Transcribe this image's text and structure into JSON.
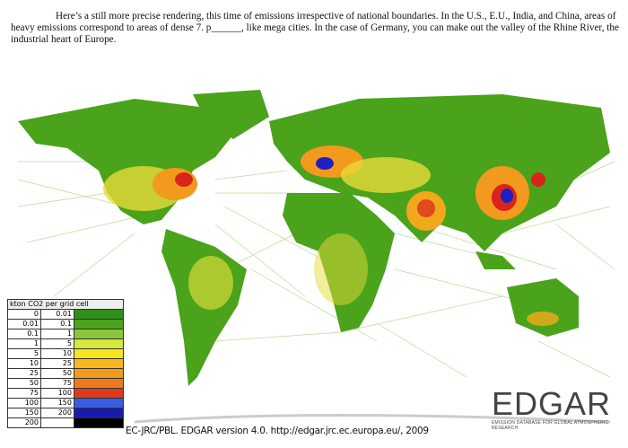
{
  "paragraph": "Here’s a still more precise rendering, this time of emissions irrespective of national boundaries. In the U.S., E.U., India, and China, areas of heavy emissions correspond to areas of dense 7. p______, like mega cities. In the case of Germany, you can make out the valley of the Rhine River, the industrial heart of Europe.",
  "legend": {
    "title": "kton CO2 per grid cell",
    "rows": [
      {
        "from": "0",
        "to": "0.01",
        "color": "#2f8f1a"
      },
      {
        "from": "0.01",
        "to": "0.1",
        "color": "#4aa31a"
      },
      {
        "from": "0.1",
        "to": "1",
        "color": "#8cc63f"
      },
      {
        "from": "1",
        "to": "5",
        "color": "#d6e83a"
      },
      {
        "from": "5",
        "to": "10",
        "color": "#f7e51e"
      },
      {
        "from": "10",
        "to": "25",
        "color": "#f7b81d"
      },
      {
        "from": "25",
        "to": "50",
        "color": "#f29a1d"
      },
      {
        "from": "50",
        "to": "75",
        "color": "#ee7a1c"
      },
      {
        "from": "75",
        "to": "100",
        "color": "#e03a1c"
      },
      {
        "from": "100",
        "to": "150",
        "color": "#3a5de0"
      },
      {
        "from": "150",
        "to": "200",
        "color": "#1a1ab0"
      },
      {
        "from": "200",
        "color": "#000000"
      }
    ]
  },
  "credit": "EC-JRC/PBL. EDGAR version 4.0. http://edgar.jrc.ec.europa.eu/, 2009",
  "logo": {
    "title": "EDGAR",
    "subtitle": "EMISSION DATABASE FOR GLOBAL ATMOSPHERIC RESEARCH"
  }
}
